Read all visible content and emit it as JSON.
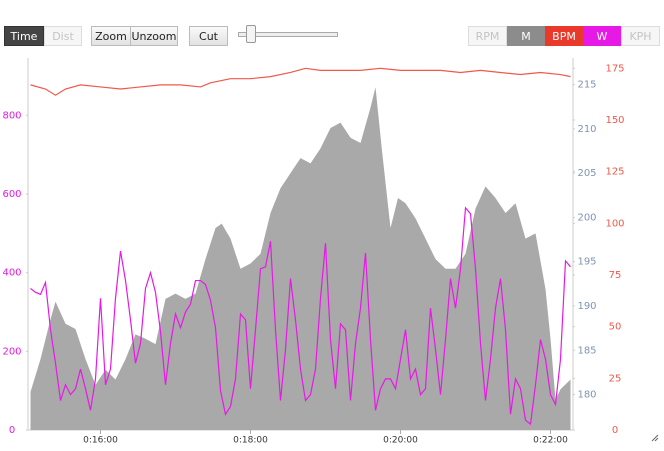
{
  "toolbar": {
    "axis_buttons": [
      "Time",
      "Dist"
    ],
    "zoom_buttons": [
      "Zoom",
      "Unzoom"
    ],
    "cut_button": "Cut",
    "extra_left": "RPM",
    "extra_right": "KPH"
  },
  "chart_data": {
    "type": "line",
    "xlim": [
      902,
      1338
    ],
    "xticks": [
      {
        "value": 960,
        "label": "0:16:00"
      },
      {
        "value": 1080,
        "label": "0:18:00"
      },
      {
        "value": 1200,
        "label": "0:20:00"
      },
      {
        "value": 1320,
        "label": "0:22:00"
      }
    ],
    "ylim": [
      0,
      946
    ],
    "yticks": [
      0,
      200,
      400,
      600,
      800
    ],
    "y2lim": [
      176,
      218
    ],
    "y2ticks": [
      180,
      185,
      190,
      195,
      200,
      205,
      210,
      215
    ],
    "y2_tick_color": "#7f94b3",
    "y3lim": [
      0,
      180
    ],
    "y3ticks": [
      0,
      25,
      50,
      75,
      100,
      125,
      150,
      175
    ],
    "series": [
      {
        "name": "M",
        "type": "area",
        "axis": "y2",
        "color": "#a9a9a9",
        "button_color": "#8c8c8c",
        "x": [
          904,
          912,
          920,
          924,
          932,
          940,
          948,
          956,
          964,
          972,
          980,
          988,
          996,
          1004,
          1012,
          1020,
          1028,
          1036,
          1044,
          1052,
          1057,
          1064,
          1072,
          1080,
          1088,
          1096,
          1104,
          1112,
          1120,
          1128,
          1136,
          1144,
          1152,
          1160,
          1168,
          1176,
          1180,
          1185,
          1192,
          1198,
          1204,
          1212,
          1220,
          1228,
          1236,
          1244,
          1252,
          1260,
          1268,
          1276,
          1284,
          1292,
          1300,
          1308,
          1316,
          1320,
          1324,
          1328,
          1336
        ],
        "values": [
          180.3,
          184.0,
          188.5,
          190.5,
          188.0,
          187.4,
          184.0,
          181.1,
          182.8,
          181.7,
          184.0,
          186.8,
          186.3,
          185.7,
          190.8,
          191.4,
          190.8,
          191.4,
          195.3,
          198.8,
          199.3,
          197.6,
          194.2,
          194.8,
          195.9,
          200.5,
          203.3,
          205.0,
          206.7,
          206.1,
          207.8,
          210.1,
          210.7,
          209.0,
          208.4,
          212.4,
          214.7,
          207.8,
          198.8,
          202.2,
          201.6,
          199.9,
          197.6,
          195.3,
          194.2,
          194.2,
          195.9,
          201.0,
          203.5,
          202.2,
          200.5,
          201.6,
          197.6,
          198.2,
          191.9,
          186.3,
          179.4,
          180.6,
          181.7
        ]
      },
      {
        "name": "W",
        "type": "line",
        "axis": "y",
        "color": "#e619e6",
        "x": [
          904,
          908,
          912,
          916,
          920,
          924,
          928,
          932,
          936,
          940,
          944,
          948,
          952,
          956,
          960,
          964,
          968,
          972,
          976,
          980,
          984,
          988,
          992,
          996,
          1000,
          1004,
          1008,
          1012,
          1016,
          1020,
          1024,
          1028,
          1032,
          1036,
          1040,
          1044,
          1048,
          1052,
          1056,
          1060,
          1064,
          1068,
          1072,
          1076,
          1080,
          1084,
          1088,
          1092,
          1096,
          1100,
          1104,
          1108,
          1112,
          1116,
          1120,
          1124,
          1128,
          1132,
          1136,
          1140,
          1144,
          1148,
          1152,
          1156,
          1160,
          1164,
          1168,
          1172,
          1176,
          1180,
          1184,
          1188,
          1192,
          1196,
          1200,
          1204,
          1208,
          1212,
          1216,
          1220,
          1224,
          1228,
          1232,
          1236,
          1240,
          1244,
          1248,
          1252,
          1256,
          1260,
          1264,
          1268,
          1272,
          1276,
          1280,
          1284,
          1288,
          1292,
          1296,
          1300,
          1304,
          1308,
          1312,
          1316,
          1320,
          1324,
          1328,
          1332,
          1336
        ],
        "values": [
          360,
          350,
          345,
          375,
          255,
          170,
          75,
          115,
          90,
          105,
          155,
          105,
          50,
          130,
          335,
          115,
          155,
          335,
          455,
          380,
          280,
          170,
          220,
          360,
          400,
          350,
          250,
          115,
          220,
          295,
          260,
          300,
          320,
          380,
          380,
          370,
          330,
          260,
          100,
          40,
          60,
          130,
          295,
          280,
          105,
          255,
          410,
          415,
          480,
          255,
          75,
          205,
          385,
          280,
          155,
          75,
          90,
          155,
          335,
          475,
          230,
          105,
          270,
          255,
          75,
          220,
          310,
          450,
          230,
          50,
          105,
          130,
          130,
          105,
          180,
          255,
          130,
          155,
          90,
          105,
          310,
          205,
          90,
          230,
          385,
          310,
          410,
          565,
          550,
          410,
          220,
          75,
          180,
          310,
          385,
          255,
          40,
          130,
          105,
          25,
          15,
          115,
          230,
          180,
          90,
          65,
          180,
          430,
          415
        ]
      },
      {
        "name": "BPM",
        "type": "line",
        "axis": "y3",
        "color": "#f0584a",
        "button_color": "#e8392b",
        "x": [
          904,
          916,
          924,
          932,
          944,
          960,
          976,
          992,
          1008,
          1024,
          1040,
          1048,
          1064,
          1080,
          1096,
          1112,
          1124,
          1136,
          1152,
          1168,
          1184,
          1200,
          1216,
          1232,
          1248,
          1264,
          1280,
          1296,
          1312,
          1328,
          1336
        ],
        "values": [
          167,
          165,
          162,
          165,
          167,
          166,
          165,
          166,
          167,
          167,
          166,
          168,
          170,
          170,
          171,
          173,
          175,
          174,
          174,
          174,
          175,
          174,
          174,
          174,
          173,
          174,
          173,
          172,
          173,
          172,
          171
        ]
      }
    ]
  }
}
